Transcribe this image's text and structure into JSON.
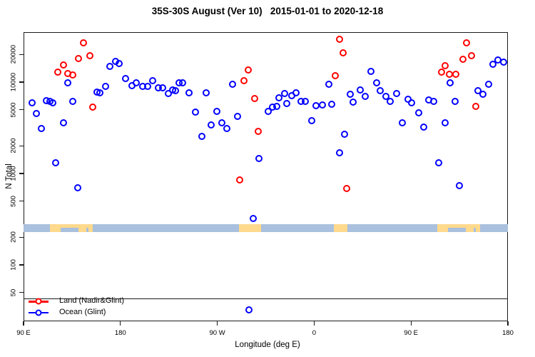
{
  "title": "35S-30S August (Ver 10)   2015-01-01 to 2020-12-18",
  "legend": {
    "items": [
      {
        "label": "Land (Nadir&Glint)",
        "color": "#ff0000"
      },
      {
        "label": "Ocean (Glint)",
        "color": "#0000ff"
      }
    ]
  },
  "chart_data": {
    "type": "scatter",
    "title": "35S-30S August (Ver 10)   2015-01-01 to 2020-12-18",
    "xlabel": "Longitude (deg E)",
    "ylabel": "N Total",
    "x_axis": {
      "range_deg": [
        90,
        540
      ],
      "ticks_deg": [
        90,
        180,
        270,
        360,
        450,
        540
      ],
      "tick_labels": [
        "90 E",
        "180",
        "90 W",
        "0",
        "90 E",
        "180"
      ]
    },
    "y_axis": {
      "scale": "log",
      "range": [
        24,
        35000
      ],
      "ticks": [
        50,
        100,
        200,
        500,
        1000,
        2000,
        5000,
        10000,
        20000
      ],
      "tick_labels": [
        "50",
        "100",
        "200",
        "500",
        "1000",
        "2000",
        "5000",
        "10000",
        "20000"
      ]
    },
    "grid": false,
    "legend_position": "bottom-left",
    "map_band": {
      "ocean_color": "#a9c0de",
      "land_color": "#ffd98c",
      "land_segments_deg": [
        [
          114.5,
          154
        ],
        [
          290,
          311
        ],
        [
          378,
          391
        ],
        [
          474.5,
          514
        ]
      ],
      "bottom_notches_deg": [
        [
          124.5,
          141
        ],
        [
          148.5,
          150.5
        ],
        [
          484.5,
          501
        ],
        [
          508.5,
          510.5
        ]
      ]
    },
    "series": [
      {
        "name": "Land (Nadir&Glint)",
        "color": "#ff0000",
        "points": [
          [
            145.5,
            27000
          ],
          [
            141,
            18200
          ],
          [
            151.5,
            19600
          ],
          [
            127,
            15400
          ],
          [
            122,
            12900
          ],
          [
            131,
            12300
          ],
          [
            135.5,
            11900
          ],
          [
            154.5,
            5300
          ],
          [
            298.5,
            13500
          ],
          [
            295,
            10300
          ],
          [
            304.5,
            6600
          ],
          [
            308,
            2900
          ],
          [
            291,
            850
          ],
          [
            383.5,
            29500
          ],
          [
            387,
            20800
          ],
          [
            379.5,
            11800
          ],
          [
            390.5,
            690
          ],
          [
            501.5,
            27000
          ],
          [
            506.5,
            19400
          ],
          [
            498,
            17900
          ],
          [
            482,
            15200
          ],
          [
            478.5,
            12900
          ],
          [
            485.5,
            12200
          ],
          [
            491.5,
            12100
          ],
          [
            510.5,
            5400
          ]
        ]
      },
      {
        "name": "Ocean (Glint)",
        "color": "#0000ff",
        "points": [
          [
            98,
            5900
          ],
          [
            102,
            4500
          ],
          [
            106.5,
            3100
          ],
          [
            111.5,
            6300
          ],
          [
            114.5,
            6200
          ],
          [
            117,
            5900
          ],
          [
            120,
            1300
          ],
          [
            127,
            3600
          ],
          [
            131,
            9800
          ],
          [
            135.5,
            6100
          ],
          [
            140.5,
            700
          ],
          [
            158,
            7800
          ],
          [
            161,
            7600
          ],
          [
            166,
            9000
          ],
          [
            170.5,
            14900
          ],
          [
            175.5,
            16900
          ],
          [
            179,
            16000
          ],
          [
            185,
            10900
          ],
          [
            190.5,
            9200
          ],
          [
            195,
            9900
          ],
          [
            200.5,
            8900
          ],
          [
            205,
            9000
          ],
          [
            210,
            10300
          ],
          [
            215.5,
            8700
          ],
          [
            219,
            8600
          ],
          [
            224.5,
            7500
          ],
          [
            228.5,
            8200
          ],
          [
            231,
            8100
          ],
          [
            234.5,
            9900
          ],
          [
            238,
            9800
          ],
          [
            244,
            7700
          ],
          [
            259.5,
            7600
          ],
          [
            250,
            4700
          ],
          [
            269.5,
            4750
          ],
          [
            264.5,
            3400
          ],
          [
            274,
            3600
          ],
          [
            279,
            3100
          ],
          [
            288.5,
            4250
          ],
          [
            255.5,
            2550
          ],
          [
            284,
            9400
          ],
          [
            308.5,
            1450
          ],
          [
            303.5,
            320
          ],
          [
            299.5,
            32
          ],
          [
            327.5,
            6700
          ],
          [
            317.5,
            4800
          ],
          [
            321.5,
            5300
          ],
          [
            325,
            5400
          ],
          [
            332.5,
            7500
          ],
          [
            339.5,
            7100
          ],
          [
            343,
            7600
          ],
          [
            334.5,
            5800
          ],
          [
            348,
            6100
          ],
          [
            351.5,
            6100
          ],
          [
            362,
            5500
          ],
          [
            367.5,
            5600
          ],
          [
            376.5,
            5700
          ],
          [
            358,
            3800
          ],
          [
            388,
            2700
          ],
          [
            383.5,
            1700
          ],
          [
            373.5,
            9500
          ],
          [
            412.5,
            13100
          ],
          [
            418,
            9900
          ],
          [
            421.5,
            8100
          ],
          [
            403,
            8200
          ],
          [
            393.5,
            7300
          ],
          [
            396.5,
            6000
          ],
          [
            407.5,
            7000
          ],
          [
            427,
            7000
          ],
          [
            430.5,
            6200
          ],
          [
            436.5,
            7500
          ],
          [
            442,
            3600
          ],
          [
            447,
            6500
          ],
          [
            450.5,
            5900
          ],
          [
            457,
            4600
          ],
          [
            466.5,
            6400
          ],
          [
            471,
            6200
          ],
          [
            491,
            6100
          ],
          [
            462,
            3200
          ],
          [
            482,
            3600
          ],
          [
            475.5,
            1300
          ],
          [
            495,
            740
          ],
          [
            486.5,
            9900
          ],
          [
            512,
            8000
          ],
          [
            516.5,
            7400
          ],
          [
            522,
            9400
          ],
          [
            526,
            15600
          ],
          [
            531,
            17400
          ],
          [
            536,
            16400
          ]
        ]
      }
    ]
  }
}
